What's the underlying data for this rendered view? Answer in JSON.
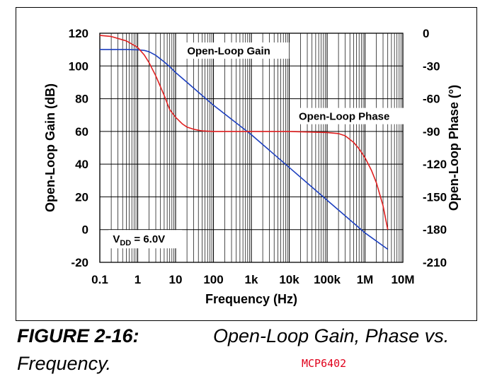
{
  "caption": {
    "label": "FIGURE 2-16:",
    "title_line1": "Open-Loop Gain, Phase vs.",
    "title_line2": "Frequency.",
    "part_number": "MCP6402"
  },
  "chart_data": {
    "type": "line",
    "title": "",
    "xlabel": "Frequency (Hz)",
    "ylabel": "Open-Loop Gain (dB)",
    "y2label": "Open-Loop Phase (°)",
    "xscale": "log",
    "xlim": [
      0.1,
      10000000
    ],
    "ylim": [
      -20,
      120
    ],
    "y2lim": [
      -210,
      0
    ],
    "grid": true,
    "x_ticks": [
      0.1,
      1,
      10,
      100,
      1000,
      10000,
      100000,
      1000000,
      10000000
    ],
    "x_tick_labels": [
      "0.1",
      "1",
      "10",
      "100",
      "1k",
      "10k",
      "100k",
      "1M",
      "10M"
    ],
    "y_ticks": [
      -20,
      0,
      20,
      40,
      60,
      80,
      100,
      120
    ],
    "y_tick_labels": [
      "-20",
      "0",
      "20",
      "40",
      "60",
      "80",
      "100",
      "120"
    ],
    "y2_ticks": [
      -210,
      -180,
      -150,
      -120,
      -90,
      -60,
      -30,
      0
    ],
    "y2_tick_labels": [
      "-210",
      "-180",
      "-150",
      "-120",
      "-90",
      "-60",
      "-30",
      "0"
    ],
    "annotations": [
      {
        "text": "Open-Loop Gain",
        "x": 80,
        "y": 107
      },
      {
        "text": "Open-Loop Phase",
        "x": 30000,
        "y": 67
      },
      {
        "text_main": "V",
        "text_sub": "DD",
        "text_rest": " = 6.0V",
        "x": 0.22,
        "y": -8
      }
    ],
    "series": [
      {
        "name": "Open-Loop Gain",
        "axis": "left",
        "color": "#1c3fbf",
        "x": [
          0.1,
          0.5,
          1,
          1.5,
          2,
          3,
          5,
          7,
          10,
          20,
          50,
          100,
          1000,
          10000,
          100000,
          1000000,
          4000000
        ],
        "y": [
          110,
          110,
          109.9,
          109.5,
          108.7,
          106.5,
          102.5,
          99.5,
          96,
          90,
          82,
          76,
          58,
          38,
          18,
          -2,
          -12
        ]
      },
      {
        "name": "Open-Loop Phase",
        "axis": "right",
        "color": "#e02020",
        "x": [
          0.1,
          0.2,
          0.5,
          1,
          1.5,
          2,
          3,
          5,
          7,
          10,
          15,
          20,
          30,
          50,
          100,
          1000,
          10000,
          100000,
          200000,
          300000,
          500000,
          700000,
          1000000,
          1500000,
          2000000,
          3000000,
          4000000
        ],
        "y": [
          -2,
          -3,
          -7,
          -13,
          -20,
          -27,
          -39,
          -57,
          -70,
          -77,
          -83,
          -86,
          -88,
          -89.5,
          -90,
          -90,
          -90,
          -91,
          -92,
          -94,
          -100,
          -106,
          -114,
          -126,
          -137,
          -158,
          -180
        ]
      }
    ]
  }
}
